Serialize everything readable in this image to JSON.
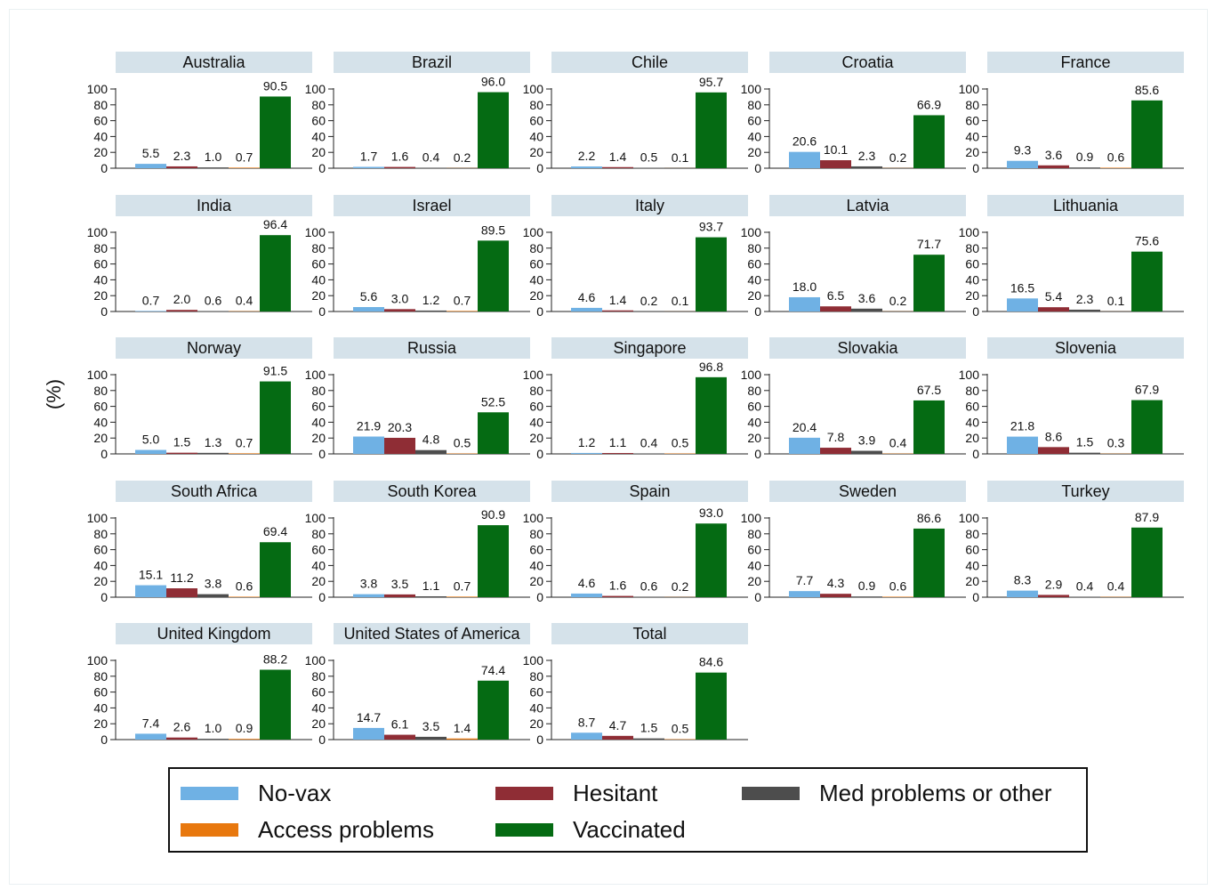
{
  "chart_data": {
    "type": "bar",
    "ylabel": "(%)",
    "ylim": [
      0,
      100
    ],
    "yticks": [
      0,
      20,
      40,
      60,
      80,
      100
    ],
    "series": [
      {
        "name": "No-vax",
        "color": "#6fb1e4"
      },
      {
        "name": "Hesitant",
        "color": "#8f2d35"
      },
      {
        "name": "Med problems or other",
        "color": "#4d4d4d"
      },
      {
        "name": "Access problems",
        "color": "#e8780e"
      },
      {
        "name": "Vaccinated",
        "color": "#056b13"
      }
    ],
    "panels": [
      {
        "title": "Australia",
        "values": [
          5.5,
          2.3,
          1.0,
          0.7,
          90.5
        ],
        "labels": [
          "5.5",
          "2.3",
          "1.0",
          "0.7",
          "90.5"
        ]
      },
      {
        "title": "Brazil",
        "values": [
          1.7,
          1.6,
          0.4,
          0.2,
          96.0
        ],
        "labels": [
          "1.7",
          "1.6",
          "0.4",
          "0.2",
          "96.0"
        ]
      },
      {
        "title": "Chile",
        "values": [
          2.2,
          1.4,
          0.5,
          0.1,
          95.7
        ],
        "labels": [
          "2.2",
          "1.4",
          "0.5",
          "0.1",
          "95.7"
        ]
      },
      {
        "title": "Croatia",
        "values": [
          20.6,
          10.1,
          2.3,
          0.2,
          66.9
        ],
        "labels": [
          "20.6",
          "10.1",
          "2.3",
          "0.2",
          "66.9"
        ]
      },
      {
        "title": "France",
        "values": [
          9.3,
          3.6,
          0.9,
          0.6,
          85.6
        ],
        "labels": [
          "9.3",
          "3.6",
          "0.9",
          "0.6",
          "85.6"
        ]
      },
      {
        "title": "India",
        "values": [
          0.7,
          2.0,
          0.6,
          0.4,
          96.4
        ],
        "labels": [
          "0.7",
          "2.0",
          "0.6",
          "0.4",
          "96.4"
        ]
      },
      {
        "title": "Israel",
        "values": [
          5.6,
          3.0,
          1.2,
          0.7,
          89.5
        ],
        "labels": [
          "5.6",
          "3.0",
          "1.2",
          "0.7",
          "89.5"
        ]
      },
      {
        "title": "Italy",
        "values": [
          4.6,
          1.4,
          0.2,
          0.1,
          93.7
        ],
        "labels": [
          "4.6",
          "1.4",
          "0.2",
          "0.1",
          "93.7"
        ]
      },
      {
        "title": "Latvia",
        "values": [
          18.0,
          6.5,
          3.6,
          0.2,
          71.7
        ],
        "labels": [
          "18.0",
          "6.5",
          "3.6",
          "0.2",
          "71.7"
        ]
      },
      {
        "title": "Lithuania",
        "values": [
          16.5,
          5.4,
          2.3,
          0.1,
          75.6
        ],
        "labels": [
          "16.5",
          "5.4",
          "2.3",
          "0.1",
          "75.6"
        ]
      },
      {
        "title": "Norway",
        "values": [
          5.0,
          1.5,
          1.3,
          0.7,
          91.5
        ],
        "labels": [
          "5.0",
          "1.5",
          "1.3",
          "0.7",
          "91.5"
        ]
      },
      {
        "title": "Russia",
        "values": [
          21.9,
          20.3,
          4.8,
          0.5,
          52.5
        ],
        "labels": [
          "21.9",
          "20.3",
          "4.8",
          "0.5",
          "52.5"
        ]
      },
      {
        "title": "Singapore",
        "values": [
          1.2,
          1.1,
          0.4,
          0.5,
          96.8
        ],
        "labels": [
          "1.2",
          "1.1",
          "0.4",
          "0.5",
          "96.8"
        ]
      },
      {
        "title": "Slovakia",
        "values": [
          20.4,
          7.8,
          3.9,
          0.4,
          67.5
        ],
        "labels": [
          "20.4",
          "7.8",
          "3.9",
          "0.4",
          "67.5"
        ]
      },
      {
        "title": "Slovenia",
        "values": [
          21.8,
          8.6,
          1.5,
          0.3,
          67.9
        ],
        "labels": [
          "21.8",
          "8.6",
          "1.5",
          "0.3",
          "67.9"
        ]
      },
      {
        "title": "South Africa",
        "values": [
          15.1,
          11.2,
          3.8,
          0.6,
          69.4
        ],
        "labels": [
          "15.1",
          "11.2",
          "3.8",
          "0.6",
          "69.4"
        ]
      },
      {
        "title": "South Korea",
        "values": [
          3.8,
          3.5,
          1.1,
          0.7,
          90.9
        ],
        "labels": [
          "3.8",
          "3.5",
          "1.1",
          "0.7",
          "90.9"
        ]
      },
      {
        "title": "Spain",
        "values": [
          4.6,
          1.6,
          0.6,
          0.2,
          93.0
        ],
        "labels": [
          "4.6",
          "1.6",
          "0.6",
          "0.2",
          "93.0"
        ]
      },
      {
        "title": "Sweden",
        "values": [
          7.7,
          4.3,
          0.9,
          0.6,
          86.6
        ],
        "labels": [
          "7.7",
          "4.3",
          "0.9",
          "0.6",
          "86.6"
        ]
      },
      {
        "title": "Turkey",
        "values": [
          8.3,
          2.9,
          0.4,
          0.4,
          87.9
        ],
        "labels": [
          "8.3",
          "2.9",
          "0.4",
          "0.4",
          "87.9"
        ]
      },
      {
        "title": "United Kingdom",
        "values": [
          7.4,
          2.6,
          1.0,
          0.9,
          88.2
        ],
        "labels": [
          "7.4",
          "2.6",
          "1.0",
          "0.9",
          "88.2"
        ]
      },
      {
        "title": "United States of America",
        "values": [
          14.7,
          6.1,
          3.5,
          1.4,
          74.4
        ],
        "labels": [
          "14.7",
          "6.1",
          "3.5",
          "1.4",
          "74.4"
        ]
      },
      {
        "title": "Total",
        "values": [
          8.7,
          4.7,
          1.5,
          0.5,
          84.6
        ],
        "labels": [
          "8.7",
          "4.7",
          "1.5",
          "0.5",
          "84.6"
        ]
      }
    ],
    "legend": {
      "position": "bottom"
    },
    "grid": false
  }
}
